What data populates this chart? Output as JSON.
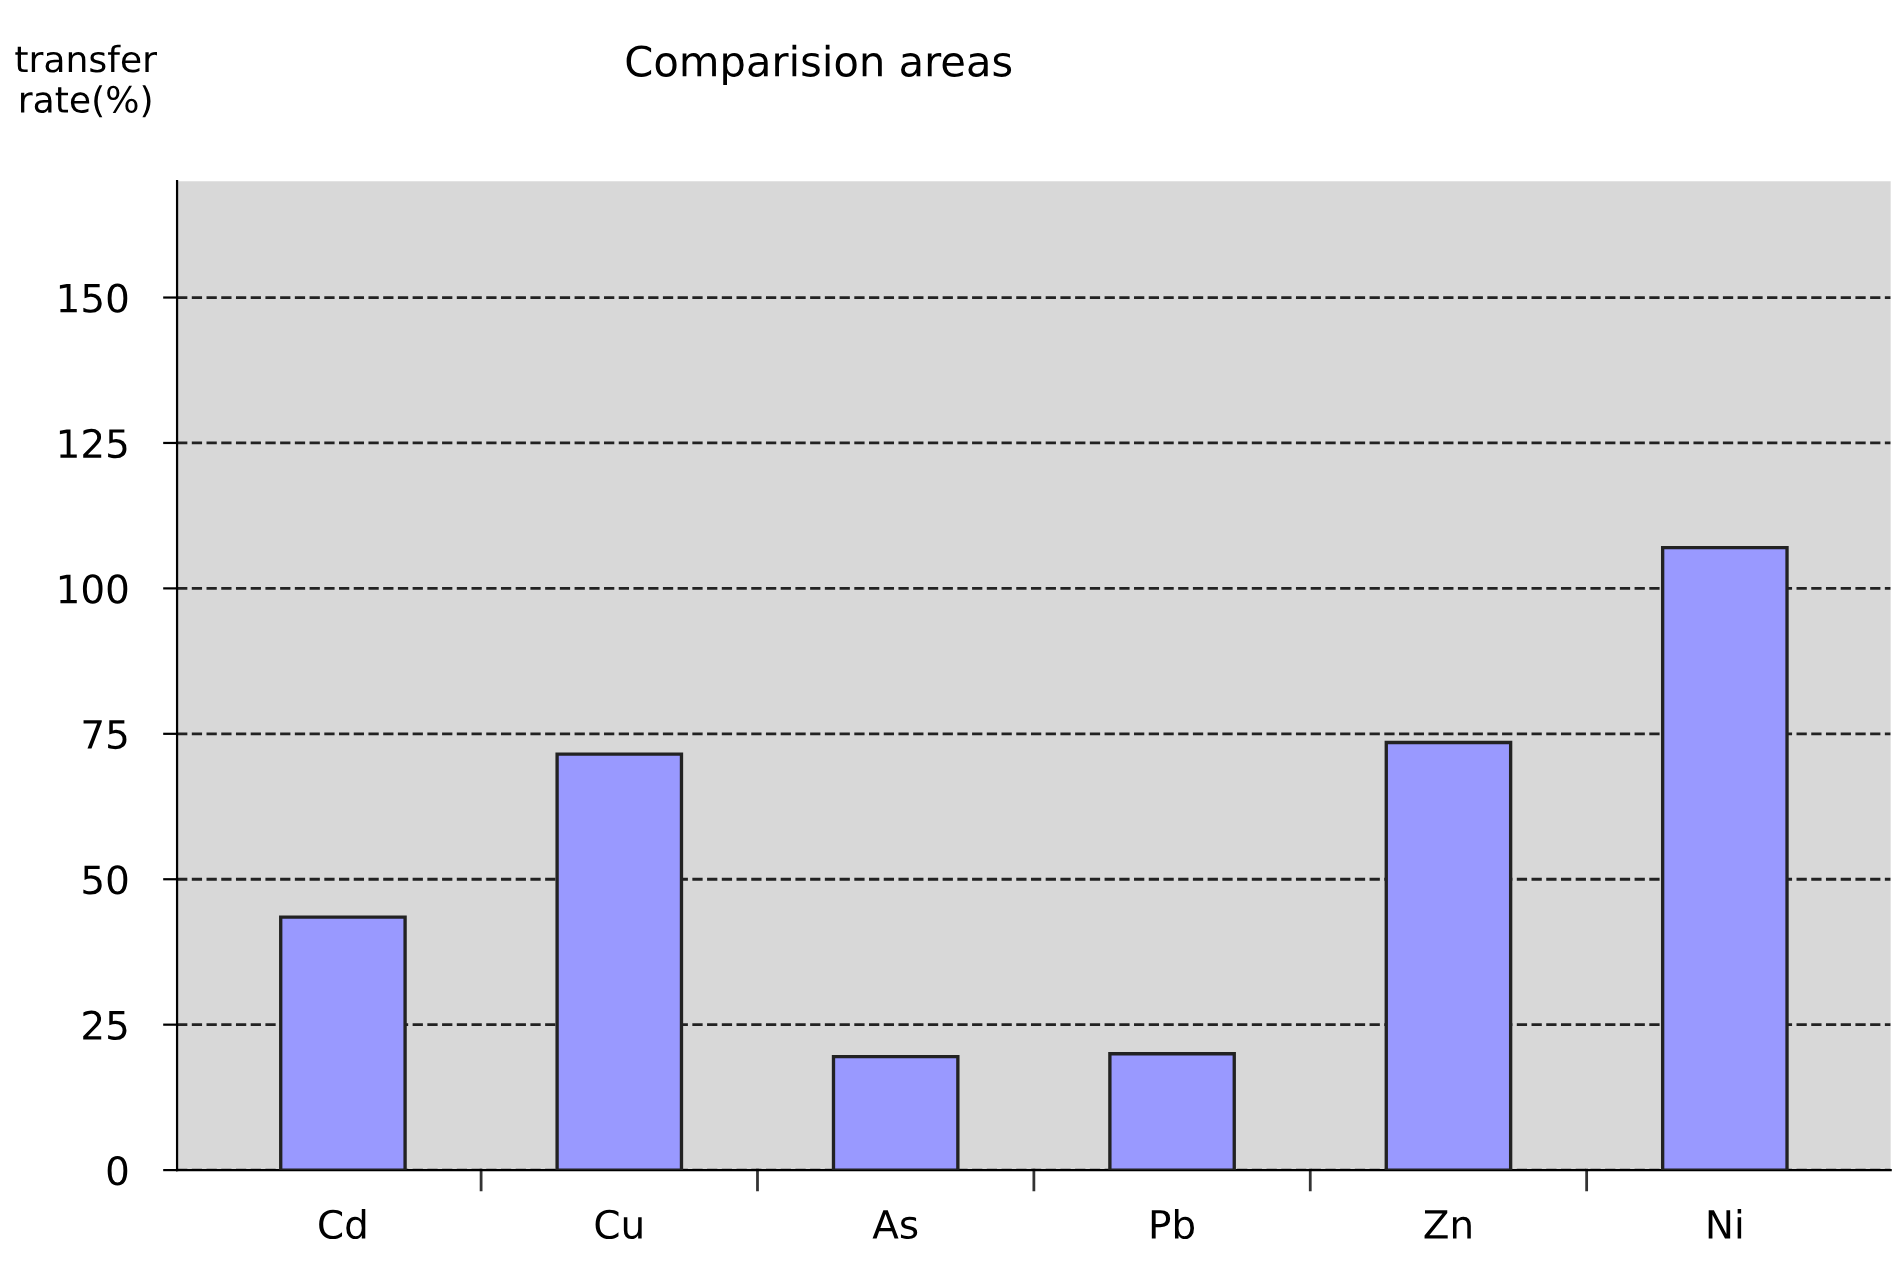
{
  "chart_data": {
    "type": "bar",
    "title": "Comparision areas",
    "ylabel": "transfer\nrate(%)",
    "categories": [
      "Cd",
      "Cu",
      "As",
      "Pb",
      "Zn",
      "Ni"
    ],
    "values": [
      43.5,
      71.5,
      19.5,
      20,
      73.5,
      107
    ],
    "color": "#9999ff",
    "ylim": [
      0,
      170
    ],
    "yticks": [
      0,
      25,
      50,
      75,
      100,
      125,
      150
    ],
    "grid": "y",
    "legend": false
  }
}
